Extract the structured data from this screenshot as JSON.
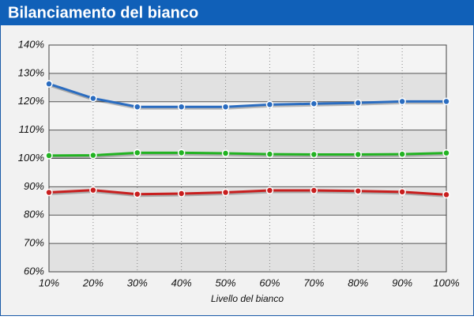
{
  "chart_data": {
    "type": "line",
    "title": "Bilanciamento del bianco",
    "x_label": "Livello del bianco",
    "categories": [
      "10%",
      "20%",
      "30%",
      "40%",
      "50%",
      "60%",
      "70%",
      "80%",
      "90%",
      "100%"
    ],
    "series": [
      {
        "color": "#2a6cc0",
        "values": [
          126.3,
          121.2,
          118.2,
          118.2,
          118.2,
          119.0,
          119.3,
          119.6,
          120.1,
          120.1
        ]
      },
      {
        "color": "#22b322",
        "values": [
          101.0,
          101.1,
          102.0,
          102.0,
          101.8,
          101.5,
          101.4,
          101.4,
          101.5,
          101.9
        ]
      },
      {
        "color": "#c81e1e",
        "values": [
          88.0,
          88.8,
          87.4,
          87.6,
          88.0,
          88.7,
          88.7,
          88.5,
          88.2,
          87.2
        ]
      }
    ],
    "ylim": [
      60,
      140
    ],
    "yticks": [
      {
        "value": 60,
        "label": "60%"
      },
      {
        "value": 70,
        "label": "70%"
      },
      {
        "value": 80,
        "label": "80%"
      },
      {
        "value": 90,
        "label": "90%"
      },
      {
        "value": 100,
        "label": "100%"
      },
      {
        "value": 110,
        "label": "110%"
      },
      {
        "value": 120,
        "label": "120%"
      },
      {
        "value": 130,
        "label": "130%"
      },
      {
        "value": 140,
        "label": "140%"
      }
    ],
    "grid": true
  }
}
